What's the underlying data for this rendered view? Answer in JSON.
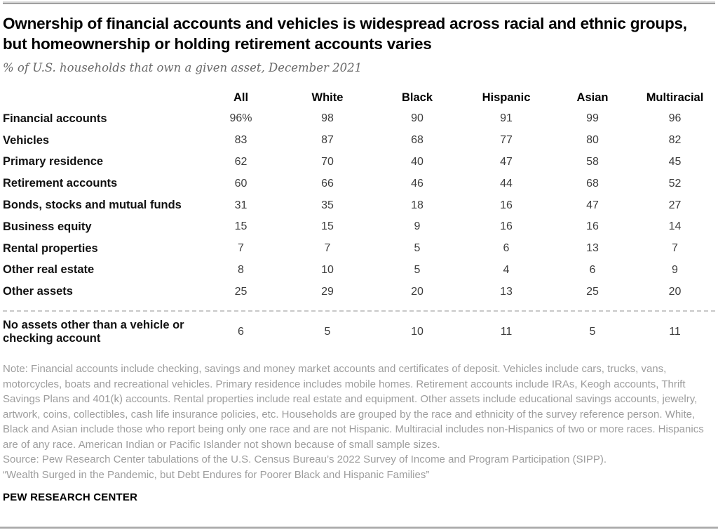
{
  "page": {
    "title": "Ownership of financial accounts and vehicles is widespread across racial and ethnic groups, but homeownership or holding retirement accounts varies",
    "subtitle": "% of U.S. households that own a given asset, December 2021",
    "note": "Note: Financial accounts include checking, savings and money market accounts and certificates of deposit. Vehicles include cars, trucks, vans, motorcycles, boats and recreational vehicles. Primary residence includes mobile homes. Retirement accounts include IRAs, Keogh accounts, Thrift Savings Plans and 401(k) accounts. Rental properties include real estate and equipment. Other assets include educational savings accounts, jewelry, artwork, coins, collectibles, cash life insurance policies, etc. Households are grouped by the race and ethnicity of the survey reference person. White, Black and Asian include those who report being only one race and are not Hispanic. Multiracial includes non-Hispanics of two or more races. Hispanics are of any race. American Indian or Pacific Islander not shown because of small sample sizes.",
    "source": "Source: Pew Research Center tabulations of the U.S. Census Bureau’s 2022 Survey of Income and Program Participation (SIPP).",
    "report": "“Wealth Surged in the Pandemic, but Debt Endures for Poorer Black and Hispanic Families”",
    "footer": "PEW RESEARCH CENTER"
  },
  "chart_data": {
    "type": "table",
    "title": "Ownership of financial accounts and vehicles is widespread across racial and ethnic groups, but homeownership or holding retirement accounts varies",
    "subtitle": "% of U.S. households that own a given asset, December 2021",
    "unit": "% of households",
    "columns": [
      "All",
      "White",
      "Black",
      "Hispanic",
      "Asian",
      "Multiracial"
    ],
    "rows": [
      {
        "label": "Financial accounts",
        "values": [
          "96%",
          "98",
          "90",
          "91",
          "99",
          "96"
        ]
      },
      {
        "label": "Vehicles",
        "values": [
          "83",
          "87",
          "68",
          "77",
          "80",
          "82"
        ]
      },
      {
        "label": "Primary residence",
        "values": [
          "62",
          "70",
          "40",
          "47",
          "58",
          "45"
        ]
      },
      {
        "label": "Retirement accounts",
        "values": [
          "60",
          "66",
          "46",
          "44",
          "68",
          "52"
        ]
      },
      {
        "label": "Bonds, stocks and mutual funds",
        "values": [
          "31",
          "35",
          "18",
          "16",
          "47",
          "27"
        ]
      },
      {
        "label": "Business equity",
        "values": [
          "15",
          "15",
          "9",
          "16",
          "16",
          "14"
        ]
      },
      {
        "label": "Rental properties",
        "values": [
          "7",
          "7",
          "5",
          "6",
          "13",
          "7"
        ]
      },
      {
        "label": "Other real estate",
        "values": [
          "8",
          "10",
          "5",
          "4",
          "6",
          "9"
        ]
      },
      {
        "label": "Other assets",
        "values": [
          "25",
          "29",
          "20",
          "13",
          "25",
          "20"
        ]
      }
    ],
    "separator_row": {
      "label": "No assets other than a vehicle or checking account",
      "values": [
        "6",
        "5",
        "10",
        "11",
        "5",
        "11"
      ]
    }
  },
  "colors": {
    "title_text": "#000000",
    "subtitle_gray": "#696969",
    "number_gray": "#3d3d3d",
    "note_gray": "#9d9d9d",
    "rule_gray": "#9f9f9f",
    "dotted_divider": "#c9c9c9"
  }
}
